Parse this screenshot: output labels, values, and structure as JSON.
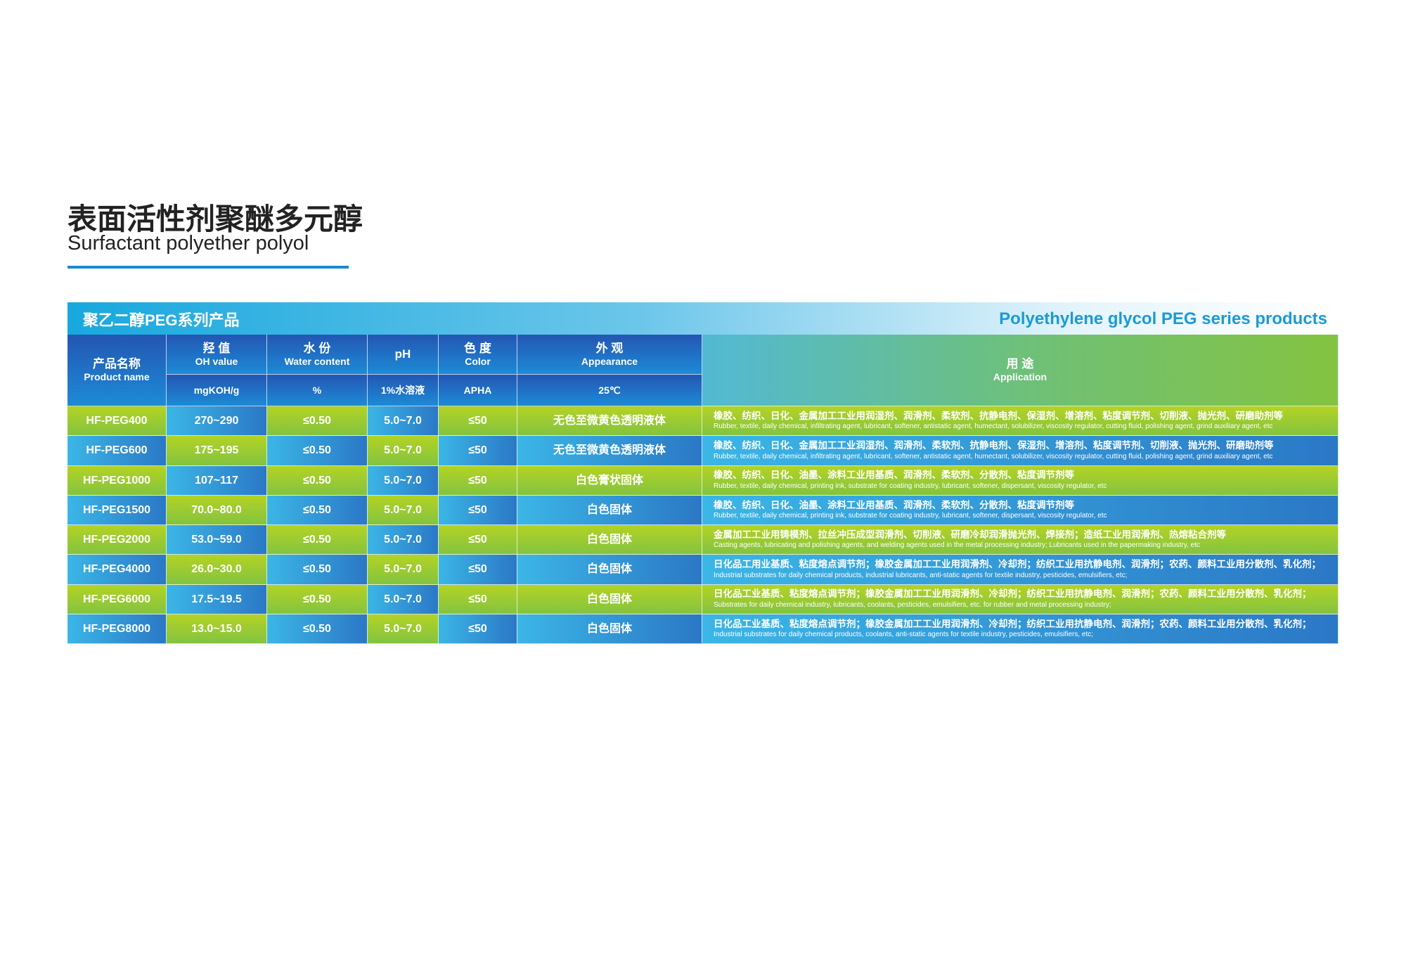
{
  "header": {
    "title": "表面活性剂聚醚多元醇",
    "subtitle": "Surfactant polyether polyol"
  },
  "banner": {
    "title_cn": "聚乙二醇PEG系列产品",
    "title_en": "Polyethylene glycol PEG series products"
  },
  "table": {
    "columns": [
      {
        "cn": "产品名称",
        "en": "Product name"
      },
      {
        "cn": "羟 值",
        "en": "OH value",
        "unit": "mgKOH/g"
      },
      {
        "cn": "水 份",
        "en": "Water content",
        "unit": "%"
      },
      {
        "cn": "pH",
        "unit": "1%水溶液"
      },
      {
        "cn": "色 度",
        "en": "Color",
        "unit": "APHA"
      },
      {
        "cn": "外 观",
        "en": "Appearance",
        "unit": "25℃"
      },
      {
        "cn": "用 途",
        "en": "Application"
      }
    ],
    "rows": [
      [
        "HF-PEG400",
        "270~290",
        "≤0.50",
        "5.0~7.0",
        "≤50",
        "无色至微黄色透明液体",
        "橡胶、纺织、日化、金属加工工业用润湿剂、润滑剂、柔软剂、抗静电剂、保湿剂、增溶剂、粘度调节剂、切削液、抛光剂、研磨助剂等",
        "Rubber, textile, daily chemical, infiltrating agent, lubricant, softener, antistatic agent, humectant, solubilizer, viscosity regulator, cutting fluid, polishing agent, grind auxiliary agent, etc"
      ],
      [
        "HF-PEG600",
        "175~195",
        "≤0.50",
        "5.0~7.0",
        "≤50",
        "无色至微黄色透明液体",
        "橡胶、纺织、日化、金属加工工业润湿剂、润滑剂、柔软剂、抗静电剂、保湿剂、增溶剂、粘度调节剂、切削液、抛光剂、研磨助剂等",
        "Rubber, textile, daily chemical, infiltrating agent, lubricant, softener, antistatic agent, humectant, solubilizer, viscosity regulator, cutting fluid, polishing agent, grind auxiliary agent, etc"
      ],
      [
        "HF-PEG1000",
        "107~117",
        "≤0.50",
        "5.0~7.0",
        "≤50",
        "白色膏状固体",
        "橡胶、纺织、日化、油墨、涂料工业用基质、润滑剂、柔软剂、分散剂、粘度调节剂等",
        "Rubber, textile, daily chemical, printing ink, substrate for coating industry, lubricant, softener, dispersant, viscosity regulator, etc"
      ],
      [
        "HF-PEG1500",
        "70.0~80.0",
        "≤0.50",
        "5.0~7.0",
        "≤50",
        "白色固体",
        "橡胶、纺织、日化、油墨、涂料工业用基质、润滑剂、柔软剂、分散剂、粘度调节剂等",
        "Rubber, textile, daily chemical, printing ink, substrate for coating industry, lubricant, softener, dispersant, viscosity regulator, etc"
      ],
      [
        "HF-PEG2000",
        "53.0~59.0",
        "≤0.50",
        "5.0~7.0",
        "≤50",
        "白色固体",
        "金属加工工业用铸模剂、拉丝冲压成型润滑剂、切削液、研磨冷却润滑抛光剂、焊接剂；造纸工业用润滑剂、热熔粘合剂等",
        "Casting agents, lubricating and polishing agents, and welding agents used in the metal processing industry; Lubricants used in the papermaking industry, etc"
      ],
      [
        "HF-PEG4000",
        "26.0~30.0",
        "≤0.50",
        "5.0~7.0",
        "≤50",
        "白色固体",
        "日化品工用业基质、粘度熔点调节剂；橡胶金属加工工业用润滑剂、冷却剂；纺织工业用抗静电剂、润滑剂；农药、颜料工业用分散剂、乳化剂；",
        "Industrial substrates for daily chemical products, industrial lubricants, anti-static agents for textile industry, pesticides, emulsifiers, etc;"
      ],
      [
        "HF-PEG6000",
        "17.5~19.5",
        "≤0.50",
        "5.0~7.0",
        "≤50",
        "白色固体",
        "日化品工业基质、粘度熔点调节剂；橡胶金属加工工业用润滑剂、冷却剂；纺织工业用抗静电剂、润滑剂；农药、颜料工业用分散剂、乳化剂；",
        "Substrates for daily chemical industry, lubricants, coolants, pesticides, emulsifiers, etc. for rubber and metal processing industry;"
      ],
      [
        "HF-PEG8000",
        "13.0~15.0",
        "≤0.50",
        "5.0~7.0",
        "≤50",
        "白色固体",
        "日化品工业基质、粘度熔点调节剂；橡胶金属加工工业用润滑剂、冷却剂；纺织工业用抗静电剂、润滑剂；农药、颜料工业用分散剂、乳化剂；",
        "Industrial substrates for daily chemical products, coolants, anti-static agents for textile industry, pesticides, emulsifiers, etc;"
      ]
    ]
  }
}
